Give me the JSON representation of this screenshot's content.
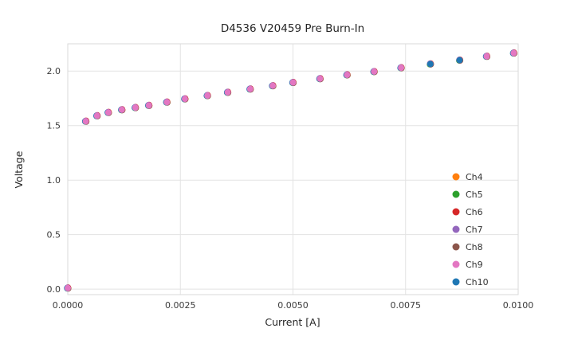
{
  "chart_data": {
    "type": "scatter",
    "title": "D4536 V20459 Pre Burn-In",
    "xlabel": "Current [A]",
    "ylabel": "Voltage",
    "xlim": [
      0.0,
      0.01
    ],
    "ylim": [
      -0.05,
      2.25
    ],
    "grid": true,
    "xticks": {
      "values": [
        0.0,
        0.0025,
        0.005,
        0.0075,
        0.01
      ],
      "labels": [
        "0.0000",
        "0.0025",
        "0.0050",
        "0.0075",
        "0.0100"
      ]
    },
    "yticks": {
      "values": [
        0.0,
        0.5,
        1.0,
        1.5,
        2.0
      ],
      "labels": [
        "0.0",
        "0.5",
        "1.0",
        "1.5",
        "2.0"
      ]
    },
    "channels": [
      {
        "name": "Ch4",
        "color": "#ff7f0e"
      },
      {
        "name": "Ch5",
        "color": "#2ca02c"
      },
      {
        "name": "Ch6",
        "color": "#d62728"
      },
      {
        "name": "Ch7",
        "color": "#9467bd"
      },
      {
        "name": "Ch8",
        "color": "#8c564b"
      },
      {
        "name": "Ch9",
        "color": "#e377c2"
      },
      {
        "name": "Ch10",
        "color": "#1f77b4"
      }
    ],
    "note": "All seven channels overlap at nearly identical points; Ch9 (pink) is visually on top at most points, Ch10 (blue) on top near x=0.008-0.009",
    "x": [
      0.0,
      0.0004,
      0.00065,
      0.0009,
      0.0012,
      0.0015,
      0.0018,
      0.0022,
      0.0026,
      0.0031,
      0.00355,
      0.00405,
      0.00455,
      0.005,
      0.0056,
      0.0062,
      0.0068,
      0.0074,
      0.00805,
      0.0087,
      0.0093,
      0.0099
    ],
    "y": [
      0.01,
      1.54,
      1.59,
      1.62,
      1.645,
      1.665,
      1.685,
      1.715,
      1.745,
      1.775,
      1.805,
      1.835,
      1.865,
      1.895,
      1.93,
      1.965,
      1.995,
      2.03,
      2.065,
      2.1,
      2.135,
      2.165
    ],
    "top_channel_default": "Ch9",
    "top_channel_overrides": {
      "18": "Ch10",
      "19": "Ch10"
    },
    "legend": {
      "position": "lower right",
      "entries": [
        {
          "label": "Ch4",
          "color": "#ff7f0e"
        },
        {
          "label": "Ch5",
          "color": "#2ca02c"
        },
        {
          "label": "Ch6",
          "color": "#d62728"
        },
        {
          "label": "Ch7",
          "color": "#9467bd"
        },
        {
          "label": "Ch8",
          "color": "#8c564b"
        },
        {
          "label": "Ch9",
          "color": "#e377c2"
        },
        {
          "label": "Ch10",
          "color": "#1f77b4"
        }
      ]
    },
    "style": {
      "grid_color": "#e3e3e3",
      "spine_color": "#d9d9d9",
      "tick_color": "#3b3b3b",
      "text_color": "#262626",
      "legend_text_color": "#333333"
    }
  }
}
